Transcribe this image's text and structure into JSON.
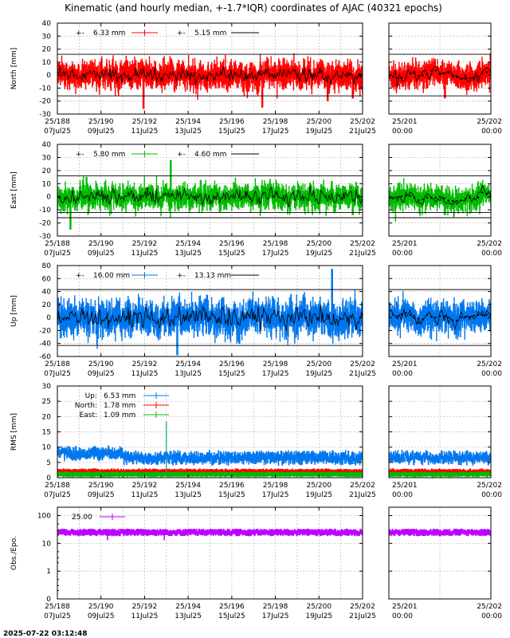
{
  "chart_data": {
    "type": "line",
    "title": "Kinematic (and hourly median, +-1.7*IQR) coordinates of AJAC (40321 epochs)",
    "timestamp": "2025-07-22 03:12:48",
    "x_main": {
      "range": [
        188,
        202
      ],
      "ticks": [
        188,
        190,
        192,
        194,
        196,
        198,
        200,
        202
      ],
      "tick_labels_line1": [
        "25/188",
        "25/190",
        "25/192",
        "25/194",
        "25/196",
        "25/198",
        "25/200",
        "25/202"
      ],
      "tick_labels_line2": [
        "07Jul25",
        "09Jul25",
        "11Jul25",
        "13Jul25",
        "15Jul25",
        "17Jul25",
        "19Jul25",
        "21Jul25"
      ]
    },
    "x_zoom": {
      "range": [
        201,
        202
      ],
      "ticks": [
        201,
        202
      ],
      "tick_labels_line1": [
        "25/201",
        "25/202"
      ],
      "tick_labels_line2": [
        "00:00",
        "00:00"
      ]
    },
    "panels": [
      {
        "id": "north",
        "ylabel": "North [mm]",
        "ylim": [
          -30,
          40
        ],
        "yticks": [
          -30,
          -20,
          -10,
          0,
          10,
          20,
          30,
          40
        ],
        "ytick_labels": [
          "-30",
          "-20",
          "-10",
          "0",
          "10",
          "20",
          "30",
          "40"
        ],
        "color": "#ff0000",
        "scatter": 6.33,
        "median_scatter": 5.15,
        "threshold_lines": [
          16,
          -16
        ],
        "legend": [
          {
            "prefix": "+-",
            "value": "6.33 mm",
            "style": "kinematic",
            "color": "#ff0000"
          },
          {
            "prefix": "+-",
            "value": "5.15 mm",
            "style": "median",
            "color": "#000000"
          }
        ],
        "dips": [
          {
            "x": 191.95,
            "y": -26
          },
          {
            "x": 197.4,
            "y": -25
          },
          {
            "x": 200.4,
            "y": -20
          },
          {
            "x": 201.55,
            "y": -18
          }
        ]
      },
      {
        "id": "east",
        "ylabel": "East [mm]",
        "ylim": [
          -30,
          40
        ],
        "yticks": [
          -30,
          -20,
          -10,
          0,
          10,
          20,
          30,
          40
        ],
        "ytick_labels": [
          "-30",
          "-20",
          "-10",
          "0",
          "10",
          "20",
          "30",
          "40"
        ],
        "color": "#00bb00",
        "scatter": 5.8,
        "median_scatter": 4.6,
        "threshold_lines": [
          16,
          -16,
          -12
        ],
        "legend": [
          {
            "prefix": "+-",
            "value": "5.80 mm",
            "style": "kinematic",
            "color": "#00bb00"
          },
          {
            "prefix": "+-",
            "value": "4.60 mm",
            "style": "median",
            "color": "#000000"
          }
        ],
        "dips": [
          {
            "x": 188.6,
            "y": -25
          },
          {
            "x": 193.2,
            "y": 28
          },
          {
            "x": 201.55,
            "y": -14
          }
        ]
      },
      {
        "id": "up",
        "ylabel": "Up [mm]",
        "ylim": [
          -60,
          80
        ],
        "yticks": [
          -60,
          -40,
          -20,
          0,
          20,
          40,
          60,
          80
        ],
        "ytick_labels": [
          "-60",
          "-40",
          "-20",
          "0",
          "20",
          "40",
          "60",
          "80"
        ],
        "color": "#0077ee",
        "scatter": 16.0,
        "median_scatter": 13.13,
        "threshold_lines": [
          43,
          -43
        ],
        "legend": [
          {
            "prefix": "+-",
            "value": "16.00 mm",
            "style": "kinematic",
            "color": "#0077ee"
          },
          {
            "prefix": "+-",
            "value": "13.13 mm",
            "style": "median",
            "color": "#000000"
          }
        ],
        "dips": [
          {
            "x": 200.6,
            "y": 75
          },
          {
            "x": 193.5,
            "y": -58
          }
        ]
      },
      {
        "id": "rms",
        "ylabel": "RMS [mm]",
        "ylim": [
          0,
          30
        ],
        "yticks": [
          0,
          5,
          10,
          15,
          20,
          25,
          30
        ],
        "ytick_labels": [
          "0",
          "5",
          "10",
          "15",
          "20",
          "25",
          "30"
        ],
        "series": [
          {
            "name": "Up:",
            "value": "6.53 mm",
            "color": "#0077ee",
            "level": 6.5
          },
          {
            "name": "North:",
            "value": "1.78 mm",
            "color": "#ff0000",
            "level": 1.9
          },
          {
            "name": "East:",
            "value": "1.09 mm",
            "color": "#00bb00",
            "level": 1.1
          }
        ],
        "spike": {
          "x": 193.0,
          "y": 18.5
        }
      },
      {
        "id": "obs",
        "ylabel": "Obs./Epo.",
        "yscale": "log",
        "ylim": [
          0.1,
          200
        ],
        "yticks": [
          0.1,
          1,
          10,
          100
        ],
        "ytick_labels": [
          "0",
          "1",
          "10",
          "100"
        ],
        "color": "#bb00ff",
        "legend": [
          {
            "value": "25.00",
            "color": "#bb00ff"
          }
        ],
        "level": 25
      }
    ]
  }
}
